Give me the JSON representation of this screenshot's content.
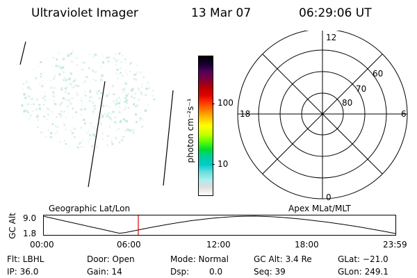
{
  "header": {
    "instrument": "Ultraviolet Imager",
    "date": "13 Mar 07",
    "time": "06:29:06 UT"
  },
  "colorbar": {
    "unit_label": "photon cm⁻²s⁻¹",
    "tick_100": "100",
    "tick_10": "10",
    "colors": [
      "#000000",
      "#1a0033",
      "#55005a",
      "#800038",
      "#b30000",
      "#e00000",
      "#ff3300",
      "#ff8000",
      "#ffc000",
      "#ffff00",
      "#c8ff00",
      "#66ff00",
      "#00dd33",
      "#00cc99",
      "#00cccc",
      "#66dddd",
      "#aaeeee",
      "#dddddd",
      "#ffffff"
    ]
  },
  "polar_plot": {
    "mlt_labels": {
      "top": "12",
      "left": "18",
      "right": "6",
      "bottom": "0"
    },
    "lat_labels": [
      "60",
      "70",
      "80"
    ]
  },
  "altitude_plot": {
    "y_axis_label": "GC Alt",
    "y_ticks": [
      "9.0",
      "1.8"
    ],
    "left_title": "Geographic Lat/Lon",
    "right_title": "Apex MLat/MLT",
    "x_ticks": [
      "00:00",
      "06:00",
      "12:00",
      "18:00",
      "23:59"
    ],
    "current_marker_color": "#dd0000"
  },
  "status": {
    "row1": [
      "Flt: LBHL",
      "Door: Open",
      "Mode: Normal",
      "GC Alt: 3.4 Re",
      "GLat: −21.0"
    ],
    "row2": [
      "IP: 36.0",
      "Gain: 14",
      "Dsp:",
      "0.0",
      "Seq: 39",
      "GLon: 249.1"
    ]
  }
}
